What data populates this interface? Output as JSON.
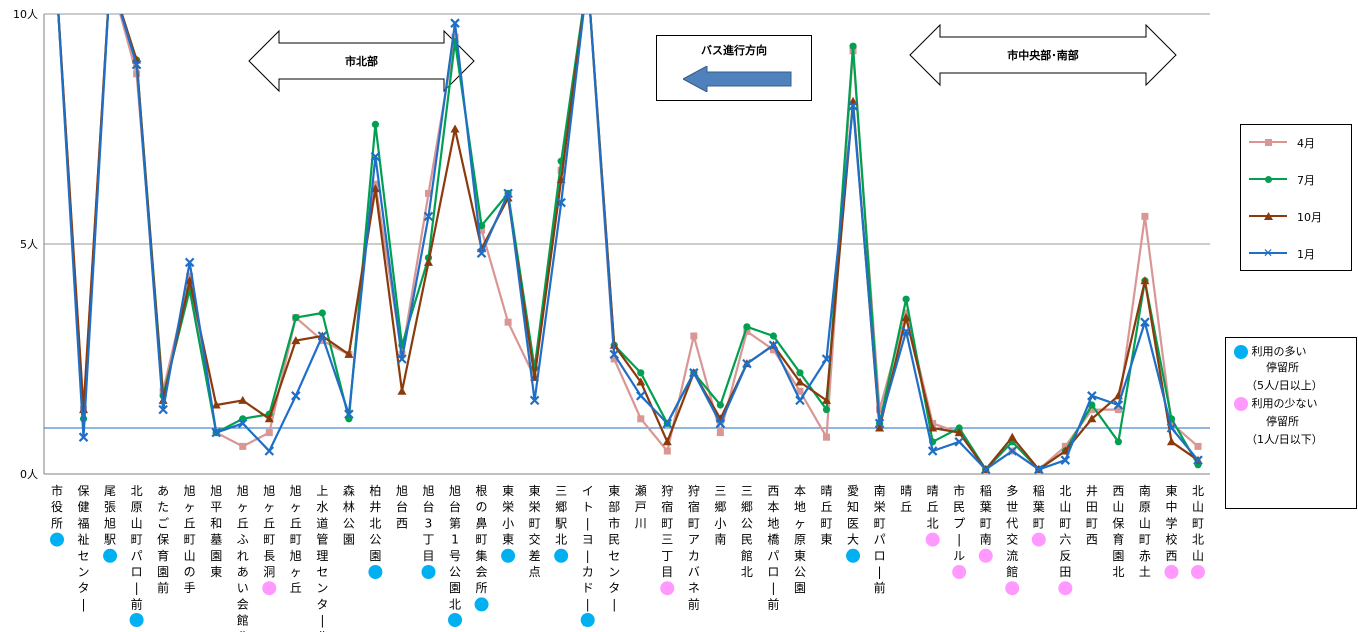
{
  "chart_data": {
    "type": "line",
    "y_tick_labels": [
      "0人",
      "5人",
      "10人"
    ],
    "ylim": [
      0,
      10
    ],
    "grid": true,
    "categories": [
      "市役所",
      "保健福祉センター",
      "尾張旭駅",
      "北原山町パロー前",
      "あたご保育園前",
      "旭ヶ丘町山の手",
      "旭平和墓園東",
      "旭ヶ丘ふれあい会館北",
      "旭ヶ丘町長洞",
      "旭ヶ丘町旭ヶ丘",
      "上水道管理センター北",
      "森林公園",
      "柏井北公園",
      "旭台西",
      "旭台3丁目",
      "旭台第1号公園北",
      "根の鼻町集会所",
      "東栄小東",
      "東栄町交差点",
      "三郷駅北",
      "イトーヨーカドー前",
      "東部市民センター",
      "瀬戸川",
      "狩宿町三丁目",
      "狩宿町アカバネ前",
      "三郷小南",
      "三郷公民館北",
      "西本地橋パロー前",
      "本地ヶ原東公園",
      "晴丘町東",
      "愛知医大",
      "南栄町パロー前",
      "晴丘",
      "晴丘北",
      "市民プール",
      "稲葉町南",
      "多世代交流館",
      "稲葉町",
      "北山町六反田",
      "井田町西",
      "西山保育園北",
      "南原山町赤土",
      "東中学校西",
      "北山町北山"
    ],
    "stop_markers": [
      "high",
      "none",
      "high",
      "high",
      "none",
      "none",
      "none",
      "none",
      "low",
      "none",
      "none",
      "none",
      "high",
      "none",
      "high",
      "high",
      "high",
      "high",
      "none",
      "high",
      "high",
      "none",
      "none",
      "low",
      "none",
      "none",
      "none",
      "none",
      "none",
      "none",
      "high",
      "none",
      "none",
      "low",
      "low",
      "low",
      "low",
      "low",
      "low",
      "none",
      "none",
      "none",
      "low",
      "low"
    ],
    "series": [
      {
        "name": "4月",
        "color": "#d99694",
        "marker": "square",
        "values": [
          10.5,
          1.4,
          10.8,
          8.7,
          1.8,
          4.3,
          0.9,
          0.6,
          0.9,
          3.4,
          2.9,
          2.6,
          6.3,
          2.6,
          6.1,
          9.5,
          5.3,
          3.3,
          2.1,
          6.6,
          10.8,
          2.5,
          1.2,
          0.5,
          3.0,
          0.9,
          3.1,
          2.7,
          1.8,
          0.8,
          9.2,
          1.4,
          3.5,
          1.1,
          0.9,
          0.1,
          0.5,
          0.1,
          0.6,
          1.4,
          1.4,
          5.6,
          1.1,
          0.6
        ]
      },
      {
        "name": "7月",
        "color": "#00a050",
        "marker": "circle",
        "values": [
          10.5,
          1.2,
          10.8,
          9.0,
          1.7,
          4.0,
          0.9,
          1.2,
          1.3,
          3.4,
          3.5,
          1.2,
          7.6,
          2.8,
          4.7,
          9.4,
          5.4,
          6.1,
          2.3,
          6.8,
          10.8,
          2.8,
          2.2,
          1.1,
          2.2,
          1.5,
          3.2,
          3.0,
          2.2,
          1.4,
          9.3,
          1.1,
          3.8,
          0.7,
          1.0,
          0.1,
          0.7,
          0.1,
          0.5,
          1.5,
          0.7,
          4.2,
          1.2,
          0.2
        ]
      },
      {
        "name": "10月",
        "color": "#8b3a0c",
        "marker": "triangle",
        "values": [
          10.5,
          1.4,
          10.8,
          9.0,
          1.6,
          4.2,
          1.5,
          1.6,
          1.2,
          2.9,
          3.0,
          2.6,
          6.2,
          1.8,
          4.6,
          7.5,
          4.9,
          6.0,
          2.1,
          6.4,
          10.8,
          2.8,
          2.0,
          0.7,
          2.2,
          1.2,
          2.4,
          2.8,
          2.0,
          1.6,
          8.1,
          1.0,
          3.4,
          1.0,
          0.9,
          0.1,
          0.8,
          0.1,
          0.5,
          1.2,
          1.7,
          4.2,
          0.7,
          0.3
        ]
      },
      {
        "name": "1月",
        "color": "#1f6fc6",
        "marker": "x",
        "values": [
          10.5,
          0.8,
          10.8,
          8.9,
          1.4,
          4.6,
          0.9,
          1.1,
          0.5,
          1.7,
          3.0,
          1.3,
          6.9,
          2.5,
          5.6,
          9.8,
          4.8,
          6.1,
          1.6,
          5.9,
          10.8,
          2.6,
          1.7,
          1.1,
          2.2,
          1.1,
          2.4,
          2.8,
          1.6,
          2.5,
          8.0,
          1.1,
          3.1,
          0.5,
          0.7,
          0.1,
          0.5,
          0.1,
          0.3,
          1.7,
          1.5,
          3.3,
          1.0,
          0.3
        ]
      }
    ]
  },
  "annotations": {
    "north_area": "市北部",
    "central_south_area": "市中央部･南部",
    "bus_direction": "バス進行方向"
  },
  "stop_legend": {
    "high_line1": "利用の多い",
    "high_line2": "停留所",
    "high_line3": "（5人/日以上）",
    "low_line1": "利用の少ない",
    "low_line2": "停留所",
    "low_line3": "（1人/日以下）",
    "high_color": "#00b0f0",
    "low_color": "#ff99ff"
  }
}
